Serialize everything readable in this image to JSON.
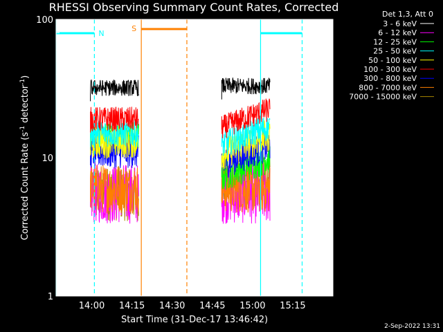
{
  "chart_data": {
    "type": "line",
    "title": "RHESSI Observing Summary Count Rates, Corrected",
    "xlabel": "Start Time (31-Dec-17 13:46:42)",
    "ylabel": "Corrected Count Rate (s",
    "ylabel_sup1": "-1",
    "ylabel_mid": " detector",
    "ylabel_sup2": "-1",
    "ylabel_end": ")",
    "yscale": "log",
    "ylim": [
      1,
      100
    ],
    "xlim_minutes": [
      "13:46:42",
      "15:30:00"
    ],
    "x_ticks": [
      "14:00",
      "14:15",
      "14:30",
      "14:45",
      "15:00",
      "15:15"
    ],
    "x_tick_minutes": [
      840,
      855,
      870,
      885,
      900,
      915
    ],
    "x_start_minute": 826.7,
    "x_end_minute": 930.0,
    "y_ticks": [
      "1",
      "10",
      "100"
    ],
    "y_tick_values": [
      1,
      10,
      100
    ],
    "legend_title": "Det 1,3, Att 0",
    "series": [
      {
        "name": "3 - 6 keV",
        "color": "#000000",
        "level_a": 32,
        "level_b": 33
      },
      {
        "name": "6 - 12 keV",
        "color": "#ff00ff",
        "level_a": 5.5,
        "level_b": 5.5
      },
      {
        "name": "12 - 25 keV",
        "color": "#00ff00",
        "level_a": 14,
        "level_b": 9
      },
      {
        "name": "25 - 50 keV",
        "color": "#00ffff",
        "level_a": 15,
        "level_b": 15
      },
      {
        "name": "50 - 100 keV",
        "color": "#ffff00",
        "level_a": 13,
        "level_b": 13
      },
      {
        "name": "100 - 300 keV",
        "color": "#ff0000",
        "level_a": 19,
        "level_b": 20
      },
      {
        "name": "300 - 800 keV",
        "color": "#0000ff",
        "level_a": 11,
        "level_b": 11
      },
      {
        "name": "800 - 7000 keV",
        "color": "#ff8000",
        "level_a": 6,
        "level_b": 6
      },
      {
        "name": "7000 - 15000 keV",
        "color": "#aa8800",
        "level_a": 5.5,
        "level_b": 6.5
      }
    ],
    "segments_minutes": [
      [
        839.5,
        857.5
      ],
      [
        888.5,
        906.5
      ]
    ],
    "annotations": {
      "night": {
        "label": "N",
        "color": "#00ffff",
        "bars": [
          [
            826.7,
            841.0
          ],
          [
            903.0,
            918.5
          ]
        ],
        "solid_lines": [
          826.7,
          903.0
        ],
        "dashed_lines": [
          841.0,
          918.5
        ]
      },
      "saa": {
        "label": "S",
        "color": "#ff8000",
        "bars": [
          [
            858.5,
            875.5
          ]
        ],
        "solid_lines": [
          858.5
        ],
        "dashed_lines": [
          875.5
        ]
      }
    }
  },
  "footer": {
    "date": "2-Sep-2022 13:31"
  }
}
